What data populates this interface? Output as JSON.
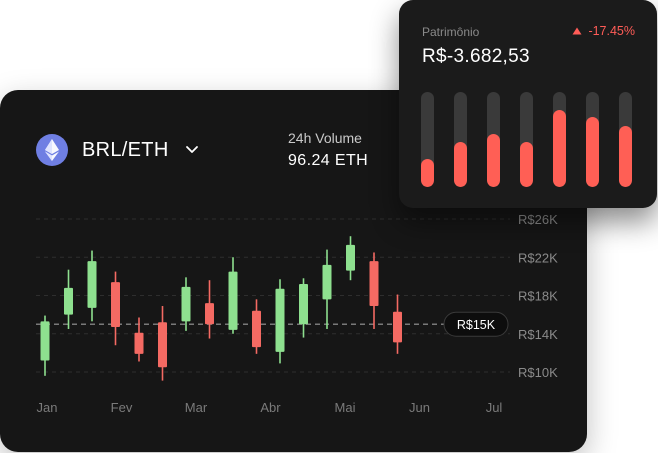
{
  "pair": {
    "label": "BRL/ETH",
    "icon": "ethereum-icon",
    "dropdown_icon": "chevron-down-icon"
  },
  "volume": {
    "label": "24h Volume",
    "value": "96.24 ETH"
  },
  "popup": {
    "title": "Patrimônio",
    "value": "R$-3.682,53",
    "change": "-17.45%",
    "change_icon": "caret-up-icon",
    "bar_fill_fractions": [
      0.3,
      0.47,
      0.56,
      0.47,
      0.81,
      0.74,
      0.64
    ],
    "colors": {
      "fill": "#ff5f55",
      "track": "#3a3a3a"
    }
  },
  "chart_data": {
    "type": "candlestick",
    "x_labels": [
      "Jan",
      "Fev",
      "Mar",
      "Abr",
      "Mai",
      "Jun",
      "Jul"
    ],
    "y_ticks": [
      "R$10K",
      "R$14K",
      "R$18K",
      "R$22K",
      "R$26K"
    ],
    "ylim": [
      10,
      26
    ],
    "grid": true,
    "current_price_label": "R$15K",
    "current_price": 15,
    "colors": {
      "up": "#8ee08f",
      "down": "#f46a63"
    },
    "candles": [
      {
        "open": 11.2,
        "close": 15.3,
        "high": 15.9,
        "low": 9.6
      },
      {
        "open": 16.0,
        "close": 18.8,
        "high": 20.7,
        "low": 14.5
      },
      {
        "open": 16.7,
        "close": 21.6,
        "high": 22.7,
        "low": 15.3
      },
      {
        "open": 19.4,
        "close": 14.7,
        "high": 20.5,
        "low": 12.8
      },
      {
        "open": 14.1,
        "close": 11.9,
        "high": 15.7,
        "low": 11.1
      },
      {
        "open": 15.2,
        "close": 10.5,
        "high": 16.9,
        "low": 9.1
      },
      {
        "open": 15.3,
        "close": 18.9,
        "high": 19.9,
        "low": 14.3
      },
      {
        "open": 17.2,
        "close": 15.0,
        "high": 19.6,
        "low": 13.5
      },
      {
        "open": 14.4,
        "close": 20.5,
        "high": 22.0,
        "low": 14.0
      },
      {
        "open": 16.4,
        "close": 12.6,
        "high": 17.6,
        "low": 11.9
      },
      {
        "open": 12.1,
        "close": 18.7,
        "high": 19.7,
        "low": 10.9
      },
      {
        "open": 15.0,
        "close": 19.2,
        "high": 19.8,
        "low": 13.6
      },
      {
        "open": 17.6,
        "close": 21.2,
        "high": 22.8,
        "low": 14.5
      },
      {
        "open": 20.6,
        "close": 23.3,
        "high": 24.2,
        "low": 19.6
      },
      {
        "open": 21.6,
        "close": 16.9,
        "high": 22.5,
        "low": 14.5
      },
      {
        "open": 16.3,
        "close": 13.1,
        "high": 18.1,
        "low": 11.9
      }
    ]
  }
}
